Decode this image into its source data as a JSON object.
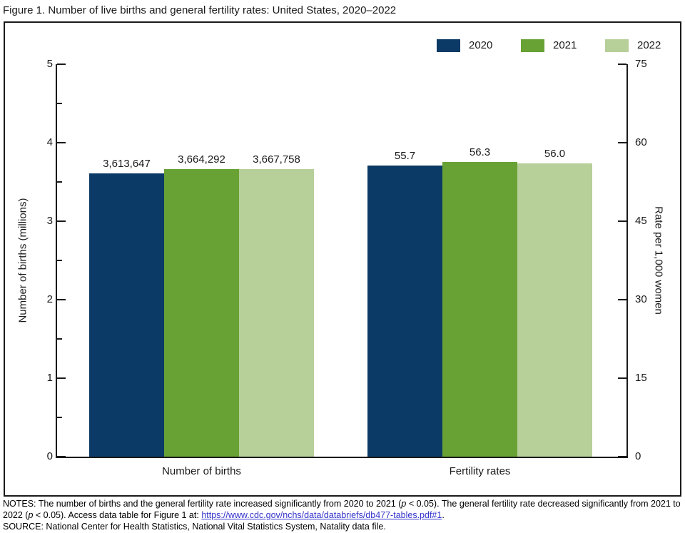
{
  "page_title": "Figure 1. Number of live births and general fertility rates: United States, 2020–2022",
  "colors": {
    "series": [
      "#0c3a66",
      "#68a234",
      "#b7cf99"
    ],
    "axis": "#1a1a1a",
    "link": "#3333cc"
  },
  "chart_data": {
    "type": "bar",
    "title": "Figure 1. Number of live births and general fertility rates: United States, 2020–2022",
    "legend": [
      "2020",
      "2021",
      "2022"
    ],
    "legend_position": "top-right",
    "grid": false,
    "left_axis": {
      "label": "Number of births (millions)",
      "ticks": [
        "0",
        "1",
        "2",
        "3",
        "4",
        "5"
      ],
      "tick_values": [
        0,
        1,
        2,
        3,
        4,
        5
      ],
      "minor_tick_values": [
        0.5,
        1.5,
        2.5,
        3.5,
        4.5
      ],
      "max": 5,
      "value_divisor": 1000000
    },
    "right_axis": {
      "label": "Rate per 1,000 women",
      "ticks": [
        "0",
        "15",
        "30",
        "45",
        "60",
        "75"
      ],
      "tick_values": [
        0,
        15,
        30,
        45,
        60,
        75
      ],
      "minor_tick_values": [],
      "max": 75,
      "value_divisor": 1
    },
    "groups": [
      {
        "label": "Number of births",
        "axis": "left",
        "series": [
          "2020",
          "2021",
          "2022"
        ],
        "values": [
          3613647,
          3664292,
          3667758
        ],
        "value_labels": [
          "3,613,647",
          "3,664,292",
          "3,667,758"
        ]
      },
      {
        "label": "Fertility rates",
        "axis": "right",
        "series": [
          "2020",
          "2021",
          "2022"
        ],
        "values": [
          55.7,
          56.3,
          56.0
        ],
        "value_labels": [
          "55.7",
          "56.3",
          "56.0"
        ]
      }
    ]
  },
  "notes": {
    "seg1": "NOTES: The number of births and the general fertility rate increased significantly from 2020 to 2021 (",
    "p_italic": "p",
    "seg2": " < 0.05). The general fertility rate decreased significantly from 2021 to 2022 (",
    "seg3": " < 0.05). Access data table for Figure 1 at: ",
    "link_text": "https://www.cdc.gov/nchs/data/databriefs/db477-tables.pdf#1",
    "seg4": ".",
    "source": "SOURCE: National Center for Health Statistics, National Vital Statistics System, Natality data file."
  }
}
